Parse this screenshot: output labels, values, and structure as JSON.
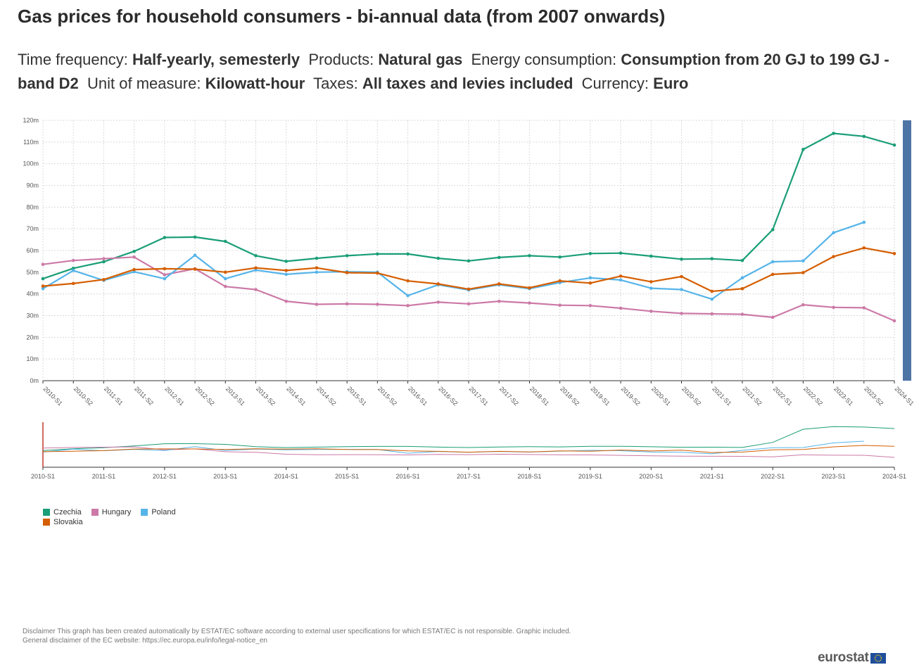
{
  "header": {
    "title": "Gas prices for household consumers - bi-annual data (from 2007 onwards)",
    "filters": [
      {
        "label": "Time frequency:",
        "value": "Half-yearly, semesterly"
      },
      {
        "label": "Products:",
        "value": "Natural gas"
      },
      {
        "label": "Energy consumption:",
        "value": "Consumption from 20 GJ to 199 GJ - band D2"
      },
      {
        "label": "Unit of measure:",
        "value": "Kilowatt-hour"
      },
      {
        "label": "Taxes:",
        "value": "All taxes and levies included"
      },
      {
        "label": "Currency:",
        "value": "Euro"
      }
    ]
  },
  "chart_data": {
    "type": "line",
    "title": "Gas prices for household consumers - bi-annual data (from 2007 onwards)",
    "xlabel": "",
    "ylabel": "",
    "ylim": [
      0,
      0.12
    ],
    "yticks": [
      0,
      0.01,
      0.02,
      0.03,
      0.04,
      0.05,
      0.06,
      0.07,
      0.08,
      0.09,
      0.1,
      0.11,
      0.12
    ],
    "ytick_labels": [
      "0m",
      "10m",
      "20m",
      "30m",
      "40m",
      "50m",
      "60m",
      "70m",
      "80m",
      "90m",
      "100m",
      "110m",
      "120m"
    ],
    "grid": true,
    "legend": "bottom-left",
    "categories": [
      "2010-S1",
      "2010-S2",
      "2011-S1",
      "2011-S2",
      "2012-S1",
      "2012-S2",
      "2013-S1",
      "2013-S2",
      "2014-S1",
      "2014-S2",
      "2015-S1",
      "2015-S2",
      "2016-S1",
      "2016-S2",
      "2017-S1",
      "2017-S2",
      "2018-S1",
      "2018-S2",
      "2019-S1",
      "2019-S2",
      "2020-S1",
      "2020-S2",
      "2021-S1",
      "2021-S2",
      "2022-S1",
      "2022-S2",
      "2023-S1",
      "2023-S2",
      "2024-S1"
    ],
    "navigator_labels": [
      "2010-S1",
      "2011-S1",
      "2012-S1",
      "2013-S1",
      "2014-S1",
      "2015-S1",
      "2016-S1",
      "2017-S1",
      "2018-S1",
      "2019-S1",
      "2020-S1",
      "2021-S1",
      "2022-S1",
      "2023-S1",
      "2024-S1"
    ],
    "series": [
      {
        "name": "Czechia",
        "color": "#1a9e77",
        "values": [
          0.047,
          0.0518,
          0.0548,
          0.0596,
          0.066,
          0.0662,
          0.0642,
          0.0576,
          0.055,
          0.0564,
          0.0576,
          0.0584,
          0.0584,
          0.0564,
          0.0552,
          0.0568,
          0.0576,
          0.057,
          0.0586,
          0.0588,
          0.0574,
          0.056,
          0.0562,
          0.0554,
          0.0696,
          0.1066,
          0.114,
          0.1126,
          0.1086
        ]
      },
      {
        "name": "Hungary",
        "color": "#cc79a7",
        "values": [
          0.0536,
          0.0554,
          0.0562,
          0.057,
          0.0488,
          0.0516,
          0.0434,
          0.042,
          0.0366,
          0.0352,
          0.0354,
          0.0352,
          0.0346,
          0.0362,
          0.0354,
          0.0366,
          0.0358,
          0.0348,
          0.0346,
          0.0334,
          0.032,
          0.031,
          0.0308,
          0.0306,
          0.0292,
          0.035,
          0.0338,
          0.0336,
          0.0276
        ]
      },
      {
        "name": "Poland",
        "color": "#56b4e9",
        "values": [
          0.0424,
          0.0508,
          0.0462,
          0.0502,
          0.047,
          0.0578,
          0.047,
          0.051,
          0.049,
          0.05,
          0.0502,
          0.05,
          0.0392,
          0.0442,
          0.0418,
          0.0442,
          0.0424,
          0.0452,
          0.0474,
          0.0464,
          0.0426,
          0.042,
          0.0376,
          0.0474,
          0.0548,
          0.0552,
          0.0682,
          0.073,
          null
        ]
      },
      {
        "name": "Slovakia",
        "color": "#d55e00",
        "values": [
          0.0436,
          0.0448,
          0.0466,
          0.0512,
          0.0516,
          0.0514,
          0.05,
          0.052,
          0.0508,
          0.052,
          0.0498,
          0.0496,
          0.046,
          0.0446,
          0.0422,
          0.0446,
          0.0428,
          0.046,
          0.045,
          0.0482,
          0.0456,
          0.048,
          0.0412,
          0.0424,
          0.049,
          0.0498,
          0.0572,
          0.0612,
          0.0586
        ]
      }
    ]
  },
  "legend": {
    "items": [
      {
        "name": "Czechia",
        "color": "#1a9e77"
      },
      {
        "name": "Hungary",
        "color": "#cc79a7"
      },
      {
        "name": "Poland",
        "color": "#56b4e9"
      },
      {
        "name": "Slovakia",
        "color": "#d55e00"
      }
    ]
  },
  "footer": {
    "disclaimer_line1": "Disclaimer This graph has been created automatically by ESTAT/EC software according to external user specifications for which ESTAT/EC is not responsible. Graphic included.",
    "disclaimer_line2": "General disclaimer of the EC website: https://ec.europa.eu/info/legal-notice_en",
    "logo_text": "eurostat"
  }
}
